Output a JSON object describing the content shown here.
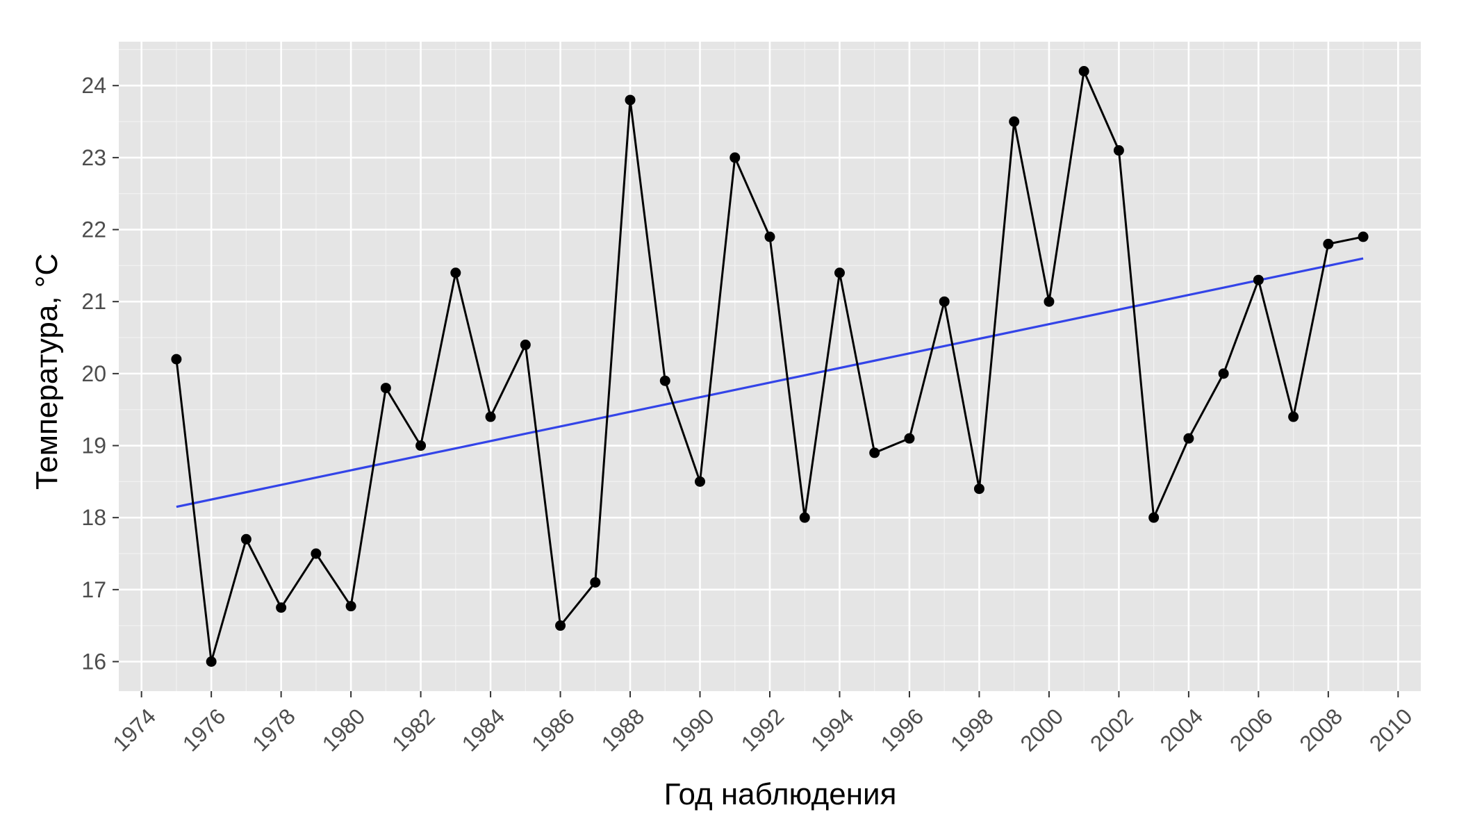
{
  "chart_data": {
    "type": "line",
    "xlabel": "Год наблюдения",
    "ylabel": "Температура, °C",
    "xlim": [
      1973.35,
      2010.65
    ],
    "ylim": [
      15.59,
      24.61
    ],
    "x_ticks": [
      1974,
      1976,
      1978,
      1980,
      1982,
      1984,
      1986,
      1988,
      1990,
      1992,
      1994,
      1996,
      1998,
      2000,
      2002,
      2004,
      2006,
      2008,
      2010
    ],
    "y_ticks": [
      16,
      17,
      18,
      19,
      20,
      21,
      22,
      23,
      24
    ],
    "grid": true,
    "legend": "none",
    "series": [
      {
        "x": [
          1975,
          1976,
          1977,
          1978,
          1979,
          1980,
          1981,
          1982,
          1983,
          1984,
          1985,
          1986,
          1987,
          1988,
          1989,
          1990,
          1991,
          1992,
          1993,
          1994,
          1995,
          1996,
          1997,
          1998,
          1999,
          2000,
          2001,
          2002,
          2003,
          2004,
          2005,
          2006,
          2007,
          2008,
          2009
        ],
        "y": [
          20.2,
          16.0,
          17.7,
          16.75,
          17.5,
          16.77,
          19.8,
          19.0,
          21.4,
          19.4,
          20.4,
          16.5,
          17.1,
          23.8,
          19.9,
          18.5,
          23.0,
          21.9,
          18.0,
          21.4,
          18.9,
          19.1,
          21.0,
          18.4,
          23.5,
          21.0,
          24.2,
          23.1,
          18.0,
          19.1,
          20.0,
          21.3,
          19.4,
          21.8,
          21.9
        ],
        "color": "#000000",
        "markers": true
      },
      {
        "type": "trend",
        "x": [
          1975,
          2009
        ],
        "y": [
          18.15,
          21.6
        ],
        "color": "#3344e8",
        "markers": false
      }
    ]
  },
  "colors": {
    "panel_bg": "#e5e5e5",
    "grid_major": "#ffffff",
    "grid_minor": "#f2f2f2",
    "tick_text": "#4d4d4d"
  }
}
